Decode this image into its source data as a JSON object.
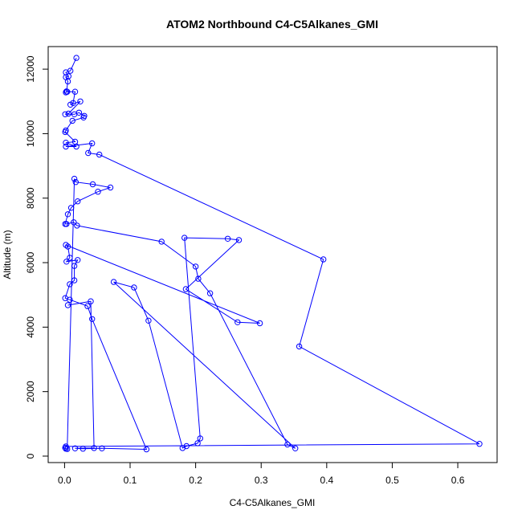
{
  "chart_data": {
    "type": "line",
    "title": "ATOM2 Northbound C4-C5Alkanes_GMI",
    "xlabel": "C4-C5Alkanes_GMI",
    "ylabel": "Altitude (m)",
    "xlim": [
      -0.025,
      0.66
    ],
    "ylim": [
      -200,
      12700
    ],
    "xticks": [
      0.0,
      0.1,
      0.2,
      0.3,
      0.4,
      0.5,
      0.6
    ],
    "xtick_labels": [
      "0.0",
      "0.1",
      "0.2",
      "0.3",
      "0.4",
      "0.5",
      "0.6"
    ],
    "yticks": [
      0,
      2000,
      4000,
      6000,
      8000,
      10000,
      12000
    ],
    "ytick_labels": [
      "0",
      "2000",
      "4000",
      "6000",
      "8000",
      "10000",
      "12000"
    ],
    "grid": false,
    "series": [
      {
        "color": "#0000ff",
        "marker": "open-circle",
        "points": [
          [
            0.018,
            12350
          ],
          [
            0.009,
            11950
          ],
          [
            0.002,
            11900
          ],
          [
            0.006,
            11780
          ],
          [
            0.002,
            11750
          ],
          [
            0.005,
            11620
          ],
          [
            0.003,
            11310
          ],
          [
            0.002,
            11280
          ],
          [
            0.004,
            11300
          ],
          [
            0.016,
            11300
          ],
          [
            0.013,
            10950
          ],
          [
            0.009,
            10900
          ],
          [
            0.024,
            11000
          ],
          [
            0.006,
            10620
          ],
          [
            0.001,
            10600
          ],
          [
            0.015,
            10600
          ],
          [
            0.022,
            10650
          ],
          [
            0.03,
            10550
          ],
          [
            0.029,
            10500
          ],
          [
            0.012,
            10400
          ],
          [
            0.002,
            10100
          ],
          [
            0.001,
            10050
          ],
          [
            0.016,
            9750
          ],
          [
            0.002,
            9720
          ],
          [
            0.018,
            9600
          ],
          [
            0.002,
            9600
          ],
          [
            0.042,
            9700
          ],
          [
            0.036,
            9400
          ],
          [
            0.053,
            9350
          ],
          [
            0.395,
            6100
          ],
          [
            0.358,
            3400
          ],
          [
            0.633,
            380
          ],
          [
            0.002,
            300
          ],
          [
            0.001,
            260
          ],
          [
            0.002,
            230
          ],
          [
            0.004,
            220
          ],
          [
            0.015,
            8600
          ],
          [
            0.017,
            8500
          ],
          [
            0.043,
            8430
          ],
          [
            0.07,
            8330
          ],
          [
            0.051,
            8200
          ],
          [
            0.02,
            7900
          ],
          [
            0.01,
            7700
          ],
          [
            0.005,
            7500
          ],
          [
            0.001,
            7200
          ],
          [
            0.003,
            7200
          ],
          [
            0.014,
            7250
          ],
          [
            0.019,
            7150
          ],
          [
            0.148,
            6650
          ],
          [
            0.2,
            5880
          ],
          [
            0.204,
            5500
          ],
          [
            0.222,
            5050
          ],
          [
            0.34,
            360
          ],
          [
            0.352,
            240
          ],
          [
            0.075,
            5400
          ],
          [
            0.106,
            5230
          ],
          [
            0.128,
            4200
          ],
          [
            0.18,
            250
          ],
          [
            0.186,
            310
          ],
          [
            0.203,
            400
          ],
          [
            0.207,
            550
          ],
          [
            0.183,
            6770
          ],
          [
            0.249,
            6740
          ],
          [
            0.266,
            6700
          ],
          [
            0.185,
            5180
          ],
          [
            0.264,
            4150
          ],
          [
            0.298,
            4120
          ],
          [
            0.002,
            6550
          ],
          [
            0.005,
            6500
          ],
          [
            0.008,
            6150
          ],
          [
            0.003,
            6030
          ],
          [
            0.02,
            6080
          ],
          [
            0.015,
            5900
          ],
          [
            0.015,
            5450
          ],
          [
            0.008,
            5330
          ],
          [
            0.001,
            4900
          ],
          [
            0.008,
            4850
          ],
          [
            0.035,
            4650
          ],
          [
            0.042,
            4250
          ],
          [
            0.125,
            210
          ],
          [
            0.057,
            240
          ],
          [
            0.028,
            230
          ],
          [
            0.016,
            240
          ],
          [
            0.045,
            250
          ],
          [
            0.04,
            4800
          ],
          [
            0.005,
            4680
          ]
        ]
      }
    ]
  }
}
